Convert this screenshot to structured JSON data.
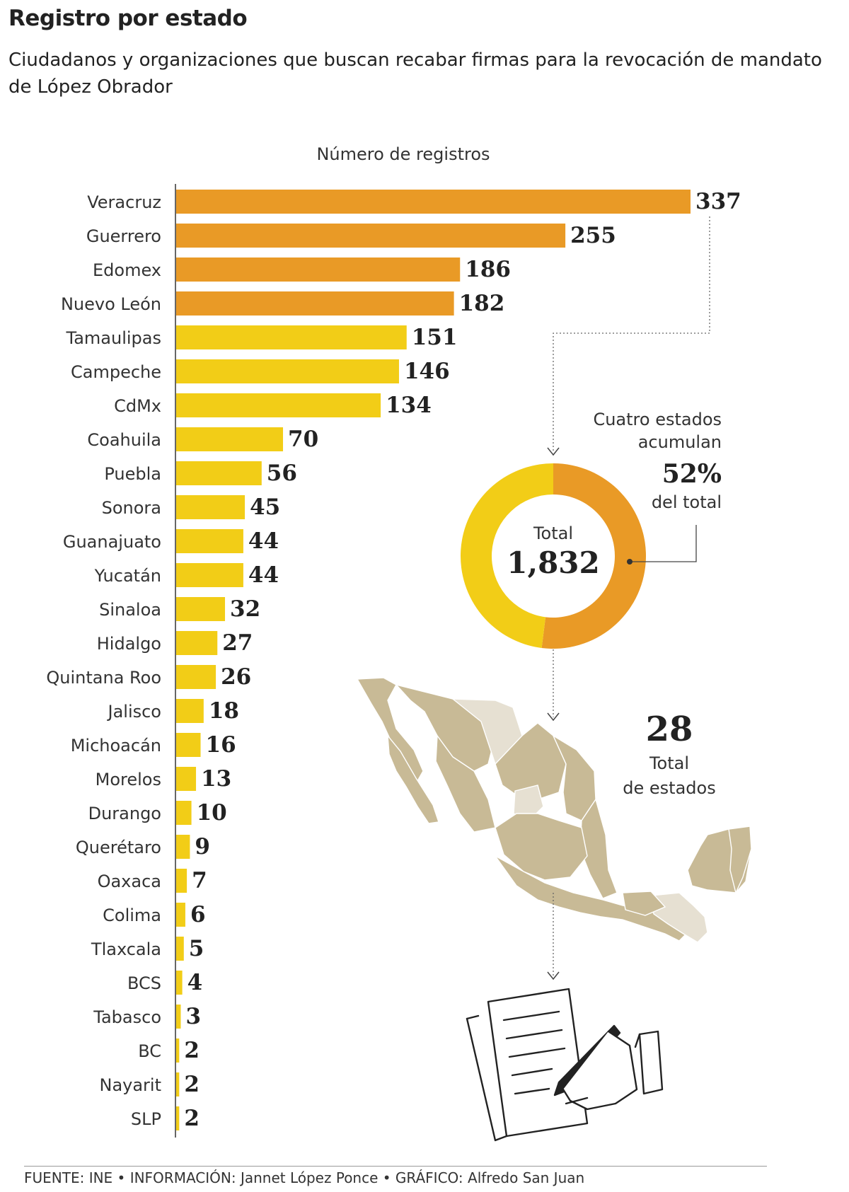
{
  "header": {
    "title": "Registro por estado",
    "subtitle": "Ciudadanos y organizaciones que buscan recabar firmas para la revocación de mandato de López Obrador"
  },
  "chart_data": {
    "type": "bar",
    "orientation": "horizontal",
    "xlabel": "Número de registros",
    "categories": [
      "Veracruz",
      "Guerrero",
      "Edomex",
      "Nuevo León",
      "Tamaulipas",
      "Campeche",
      "CdMx",
      "Coahuila",
      "Puebla",
      "Sonora",
      "Guanajuato",
      "Yucatán",
      "Sinaloa",
      "Hidalgo",
      "Quintana Roo",
      "Jalisco",
      "Michoacán",
      "Morelos",
      "Durango",
      "Querétaro",
      "Oaxaca",
      "Colima",
      "Tlaxcala",
      "BCS",
      "Tabasco",
      "BC",
      "Nayarit",
      "SLP"
    ],
    "values": [
      337,
      255,
      186,
      182,
      151,
      146,
      134,
      70,
      56,
      45,
      44,
      44,
      32,
      27,
      26,
      18,
      16,
      13,
      10,
      9,
      7,
      6,
      5,
      4,
      3,
      2,
      2,
      2
    ],
    "highlight_count": 4,
    "xlim": [
      0,
      337
    ],
    "colors": {
      "highlight": "#E99A26",
      "base": "#F2CD17"
    }
  },
  "donut": {
    "center_label": "Total",
    "center_value": "1,832",
    "highlight_fraction": 0.52,
    "callout_lines": [
      "Cuatro estados",
      "acumulan"
    ],
    "callout_percent": "52%",
    "callout_tail": "del total"
  },
  "map": {
    "big_number": "28",
    "caption_lines": [
      "Total",
      "de estados"
    ],
    "colors": {
      "states": "#C8BA96",
      "other": "#E6E0D2",
      "border": "#ffffff"
    }
  },
  "footer": {
    "text": "FUENTE: INE • INFORMACIÓN: Jannet López Ponce • GRÁFICO: Alfredo San Juan"
  }
}
